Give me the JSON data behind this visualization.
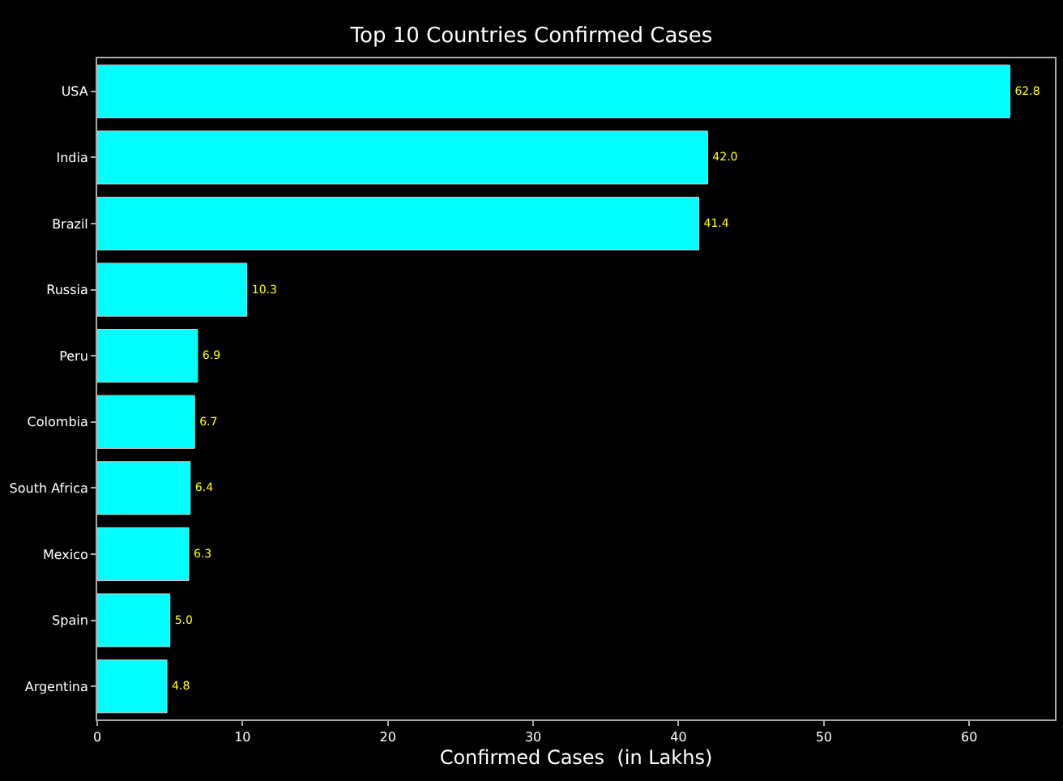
{
  "chart_data": {
    "type": "bar",
    "orientation": "horizontal",
    "title": "Top 10 Countries Confirmed Cases",
    "xlabel": "Confirmed Cases  (in Lakhs)",
    "categories": [
      "USA",
      "India",
      "Brazil",
      "Russia",
      "Peru",
      "Colombia",
      "South Africa",
      "Mexico",
      "Spain",
      "Argentina"
    ],
    "values": [
      62.8,
      42.0,
      41.4,
      10.3,
      6.9,
      6.7,
      6.4,
      6.3,
      5.0,
      4.8
    ],
    "value_labels": [
      "62.8",
      "42.0",
      "41.4",
      "10.3",
      "6.9",
      "6.7",
      "6.4",
      "6.3",
      "5.0",
      "4.8"
    ],
    "color": "#00ffff",
    "xlim": [
      0,
      65.9
    ],
    "xticks": [
      0,
      10,
      20,
      30,
      40,
      50,
      60
    ],
    "grid": false,
    "legend": false
  }
}
